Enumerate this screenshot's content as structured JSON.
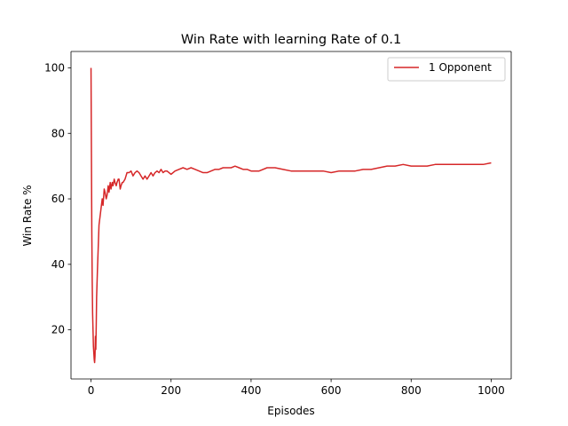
{
  "chart_data": {
    "type": "line",
    "title": "Win Rate with learning Rate of 0.1",
    "xlabel": "Episodes",
    "ylabel": "Win Rate %",
    "xlim": [
      -50,
      1050
    ],
    "ylim": [
      5,
      105
    ],
    "xticks": [
      0,
      200,
      400,
      600,
      800,
      1000
    ],
    "yticks": [
      20,
      40,
      60,
      80,
      100
    ],
    "grid": false,
    "legend_position": "top-right",
    "series": [
      {
        "name": "1 Opponent",
        "color": "#d62728",
        "x": [
          0,
          1,
          2,
          3,
          4,
          5,
          6,
          7,
          8,
          9,
          10,
          11,
          12,
          13,
          14,
          16,
          18,
          20,
          23,
          25,
          28,
          30,
          33,
          35,
          38,
          40,
          43,
          45,
          48,
          50,
          53,
          55,
          58,
          60,
          63,
          65,
          68,
          70,
          73,
          75,
          78,
          80,
          85,
          90,
          95,
          100,
          105,
          110,
          115,
          120,
          125,
          130,
          135,
          140,
          145,
          150,
          155,
          160,
          165,
          170,
          175,
          180,
          185,
          190,
          195,
          200,
          210,
          220,
          230,
          240,
          250,
          260,
          270,
          280,
          290,
          300,
          310,
          320,
          330,
          340,
          350,
          360,
          370,
          380,
          390,
          400,
          420,
          440,
          460,
          480,
          500,
          520,
          540,
          560,
          580,
          600,
          620,
          640,
          660,
          680,
          700,
          720,
          740,
          760,
          780,
          800,
          820,
          840,
          860,
          880,
          900,
          920,
          940,
          960,
          980,
          1000
        ],
        "y": [
          100,
          75,
          50,
          35,
          25,
          20,
          15,
          13,
          11,
          10,
          12,
          18,
          14,
          21,
          30,
          38,
          45,
          52,
          55,
          57,
          60,
          58,
          63,
          62,
          60,
          61,
          64,
          62,
          65,
          63,
          65,
          64,
          66,
          65,
          64,
          65,
          66,
          66,
          63,
          64,
          65,
          65,
          66,
          68,
          68,
          68.5,
          67,
          68,
          68.5,
          68,
          67,
          66,
          67,
          66,
          67,
          68,
          67,
          68,
          68.5,
          68,
          69,
          68,
          68.5,
          68.5,
          68,
          67.5,
          68.5,
          69,
          69.5,
          69,
          69.5,
          69,
          68.5,
          68,
          68,
          68.5,
          69,
          69,
          69.5,
          69.5,
          69.5,
          70,
          69.5,
          69,
          69,
          68.5,
          68.5,
          69.5,
          69.5,
          69,
          68.5,
          68.5,
          68.5,
          68.5,
          68.5,
          68,
          68.5,
          68.5,
          68.5,
          69,
          69,
          69.5,
          70,
          70,
          70.5,
          70,
          70,
          70,
          70.5,
          70.5,
          70.5,
          70.5,
          70.5,
          70.5,
          70.5,
          71
        ]
      }
    ]
  }
}
